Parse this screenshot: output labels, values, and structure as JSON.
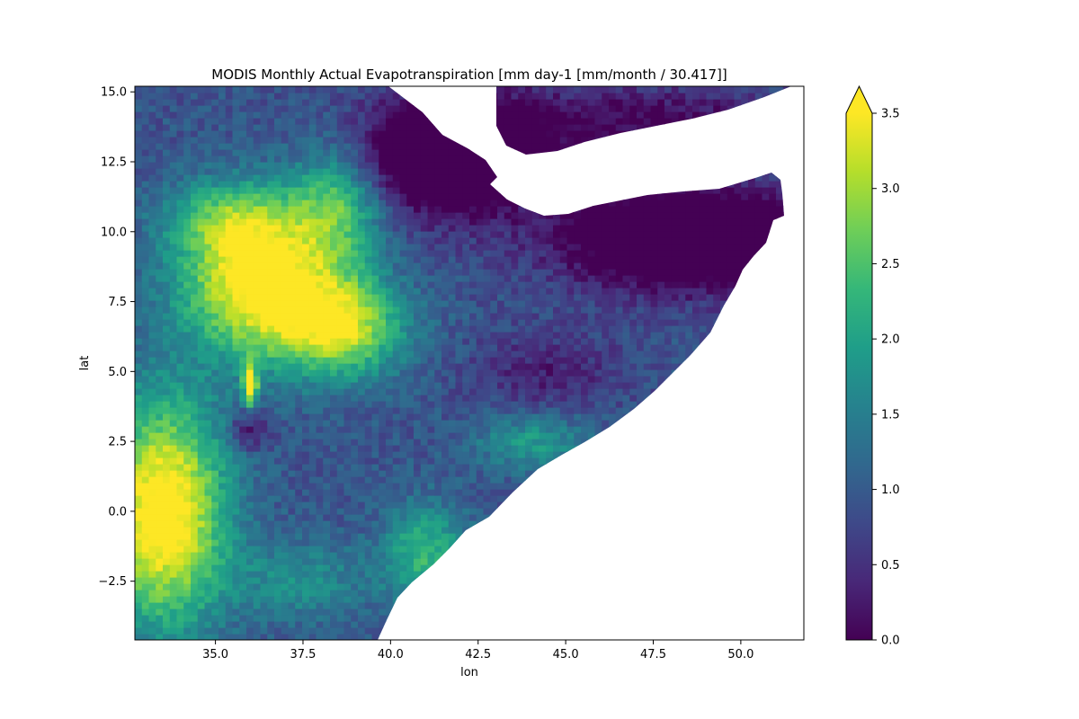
{
  "chart_data": {
    "type": "heatmap",
    "title": "MODIS Monthly Actual Evapotranspiration [mm day-1 [mm/month / 30.417]]",
    "xlabel": "lon",
    "ylabel": "lat",
    "xlim": [
      32.7,
      51.8
    ],
    "ylim": [
      -4.6,
      15.2
    ],
    "x_ticks": [
      35.0,
      37.5,
      40.0,
      42.5,
      45.0,
      47.5,
      50.0
    ],
    "x_tick_labels": [
      "35.0",
      "37.5",
      "40.0",
      "42.5",
      "45.0",
      "47.5",
      "50.0"
    ],
    "y_ticks": [
      -2.5,
      0.0,
      2.5,
      5.0,
      7.5,
      10.0,
      12.5,
      15.0
    ],
    "y_tick_labels": [
      "−2.5",
      "0.0",
      "2.5",
      "5.0",
      "7.5",
      "10.0",
      "12.5",
      "15.0"
    ],
    "grid": false,
    "colormap": "viridis",
    "colorbar": {
      "min": 0.0,
      "max": 3.5,
      "extend": "max",
      "ticks": [
        0.0,
        0.5,
        1.0,
        1.5,
        2.0,
        2.5,
        3.0,
        3.5
      ],
      "tick_labels": [
        "0.0",
        "0.5",
        "1.0",
        "1.5",
        "2.0",
        "2.5",
        "3.0",
        "3.5"
      ],
      "stops": [
        "#440154",
        "#482878",
        "#3e4989",
        "#31688e",
        "#26828e",
        "#1f9e89",
        "#35b779",
        "#6ece58",
        "#b5de2b",
        "#fde725"
      ]
    },
    "field_description": "Gridded ET values in mm/day over the Horn of Africa (lon 32.7–51.8, lat -4.6–15.2); high values (≥3.5) over the Ethiopian highlands and Kenya/Lake Victoria region, very low values (~0–0.3) over Afar/Eritrean coast, northern Somalia and southern Yemen; ocean/no-data left blank."
  }
}
